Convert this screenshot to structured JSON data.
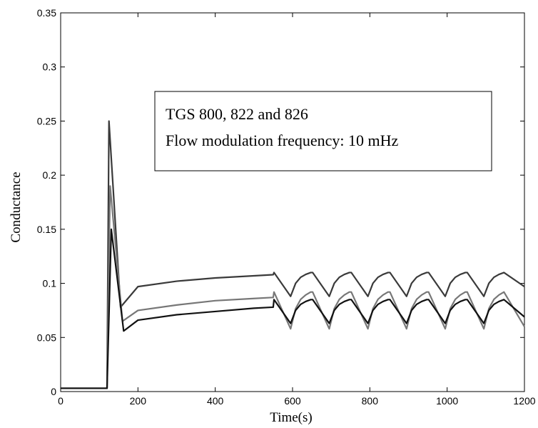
{
  "chart_data": {
    "type": "line",
    "title": "",
    "xlabel": "Time(s)",
    "ylabel": "Conductance",
    "xlim": [
      0,
      1200
    ],
    "ylim": [
      0,
      0.35
    ],
    "grid": false,
    "x_ticks": [
      0,
      200,
      400,
      600,
      800,
      1000,
      1200
    ],
    "x_tick_labels": [
      "0",
      "200",
      "400",
      "600",
      "800",
      "1000",
      "1200"
    ],
    "y_ticks": [
      0,
      0.05,
      0.1,
      0.15,
      0.2,
      0.25,
      0.3,
      0.35
    ],
    "y_tick_labels": [
      "0",
      "0.05",
      "0.1",
      "0.15",
      "0.2",
      "0.25",
      "0.3",
      "0.35"
    ],
    "annotation": {
      "lines": [
        "TGS 800, 822 and 826",
        "Flow modulation frequency: 10 mHz"
      ]
    },
    "series": [
      {
        "color": "#3a3a3a",
        "baseline": 0.003,
        "onset": 120,
        "peak": [
          125,
          0.25
        ],
        "min_after_peak": [
          155,
          0.078
        ],
        "plateau": [
          [
            200,
            0.097
          ],
          [
            300,
            0.102
          ],
          [
            400,
            0.105
          ],
          [
            500,
            0.107
          ],
          [
            550,
            0.108
          ]
        ],
        "modulation": {
          "start": 550,
          "period": 100,
          "high_to_low_drop": 0.02,
          "high": 0.11,
          "low": 0.088,
          "end_value": 0.097
        }
      },
      {
        "color": "#777777",
        "baseline": 0.003,
        "onset": 120,
        "peak": [
          128,
          0.19
        ],
        "min_after_peak": [
          160,
          0.065
        ],
        "plateau": [
          [
            200,
            0.075
          ],
          [
            300,
            0.08
          ],
          [
            400,
            0.084
          ],
          [
            500,
            0.086
          ],
          [
            550,
            0.087
          ]
        ],
        "modulation": {
          "start": 550,
          "period": 100,
          "high": 0.092,
          "low": 0.058,
          "end_value": 0.06
        }
      },
      {
        "color": "#111111",
        "baseline": 0.003,
        "onset": 120,
        "peak": [
          131,
          0.15
        ],
        "min_after_peak": [
          163,
          0.056
        ],
        "plateau": [
          [
            200,
            0.066
          ],
          [
            300,
            0.071
          ],
          [
            400,
            0.074
          ],
          [
            500,
            0.077
          ],
          [
            550,
            0.078
          ]
        ],
        "modulation": {
          "start": 550,
          "period": 100,
          "high": 0.085,
          "low": 0.063,
          "end_value": 0.069
        }
      }
    ]
  }
}
